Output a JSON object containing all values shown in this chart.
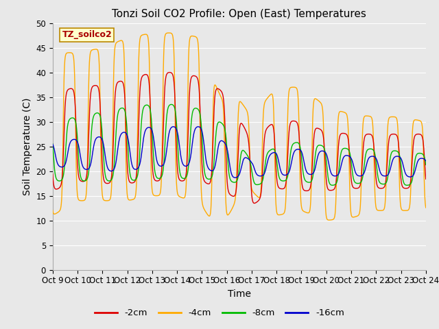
{
  "title": "Tonzi Soil CO2 Profile: Open (East) Temperatures",
  "xlabel": "Time",
  "ylabel": "Soil Temperature (C)",
  "ylim": [
    0,
    50
  ],
  "yticks": [
    0,
    5,
    10,
    15,
    20,
    25,
    30,
    35,
    40,
    45,
    50
  ],
  "legend_label": "TZ_soilco2",
  "series_labels": [
    "-2cm",
    "-4cm",
    "-8cm",
    "-16cm"
  ],
  "series_colors": [
    "#dd0000",
    "#ffaa00",
    "#00bb00",
    "#0000cc"
  ],
  "x_tick_labels": [
    "Oct 9",
    "Oct 10",
    "Oct 11",
    "Oct 12",
    "Oct 13",
    "Oct 14",
    "Oct 15",
    "Oct 16",
    "Oct 17",
    "Oct 18",
    "Oct 19",
    "Oct 20",
    "Oct 21",
    "Oct 22",
    "Oct 23",
    "Oct 24"
  ],
  "background_color": "#e8e8e8",
  "plot_bg_color": "#e8e8e8",
  "grid_color": "#ffffff",
  "title_fontsize": 11,
  "axis_fontsize": 10,
  "tick_fontsize": 8.5
}
